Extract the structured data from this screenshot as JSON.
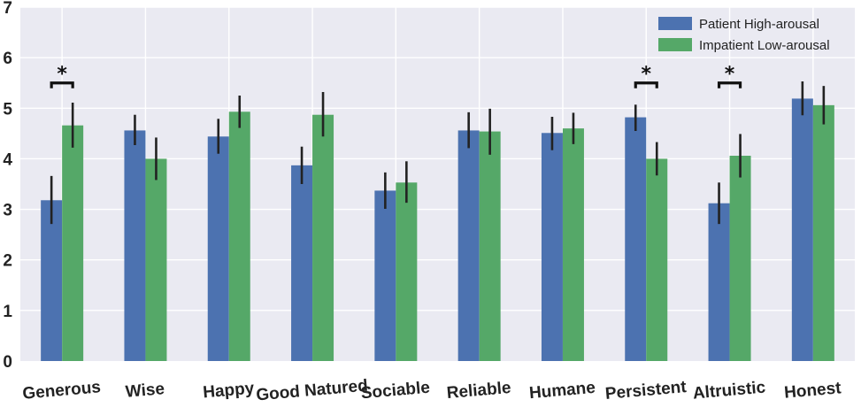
{
  "chart_data": {
    "type": "bar",
    "title": "",
    "xlabel": "",
    "ylabel": "",
    "ylim": [
      0,
      7
    ],
    "yticks": [
      "0",
      "1",
      "2",
      "3",
      "4",
      "5",
      "6",
      "7"
    ],
    "grid": true,
    "legend_position": "top-right",
    "categories": [
      "Generous",
      "Wise",
      "Happy",
      "Good Natured",
      "Sociable",
      "Reliable",
      "Humane",
      "Persistent",
      "Altruistic",
      "Honest"
    ],
    "series": [
      {
        "name": "Patient High-arousal",
        "color": "#4c72b0",
        "values": [
          3.18,
          4.56,
          4.44,
          3.87,
          3.37,
          4.56,
          4.51,
          4.82,
          3.12,
          5.19
        ],
        "err_low": [
          2.71,
          4.27,
          4.1,
          3.5,
          3.01,
          4.21,
          4.17,
          4.55,
          2.71,
          4.86
        ],
        "err_high": [
          3.66,
          4.87,
          4.79,
          4.24,
          3.73,
          4.92,
          4.83,
          5.07,
          3.53,
          5.53
        ]
      },
      {
        "name": "Impatient Low-arousal",
        "color": "#55a868",
        "values": [
          4.66,
          4.0,
          4.93,
          4.87,
          3.53,
          4.54,
          4.6,
          4.0,
          4.06,
          5.06
        ],
        "err_low": [
          4.22,
          3.58,
          4.61,
          4.44,
          3.13,
          4.08,
          4.29,
          3.67,
          3.63,
          4.68
        ],
        "err_high": [
          5.11,
          4.42,
          5.25,
          5.32,
          3.95,
          4.99,
          4.91,
          4.33,
          4.49,
          5.44
        ]
      }
    ],
    "annotations": [
      {
        "category": "Generous",
        "text": "*",
        "bracket_y": 5.5
      },
      {
        "category": "Persistent",
        "text": "*",
        "bracket_y": 5.5
      },
      {
        "category": "Altruistic",
        "text": "*",
        "bracket_y": 5.5
      }
    ]
  }
}
